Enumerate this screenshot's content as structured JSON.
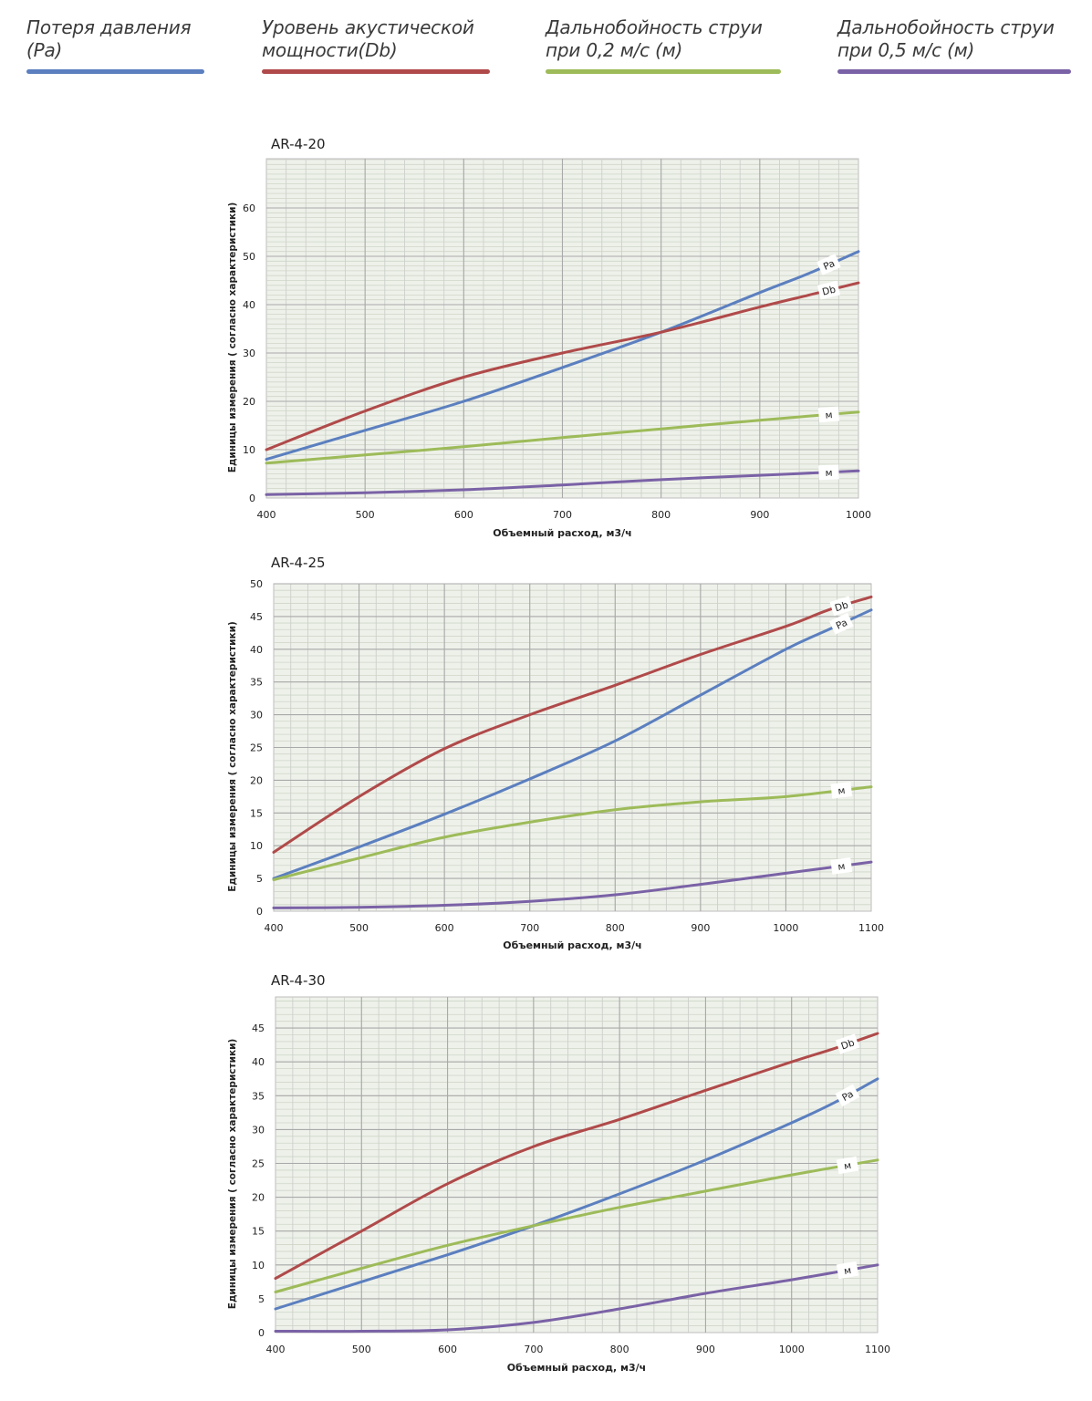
{
  "legend": [
    {
      "label": "Потеря давления\n(Pa)",
      "color": "#5b7fbf"
    },
    {
      "label": "Уровень акустической\nмощности(Db)",
      "color": "#b04a4a"
    },
    {
      "label": "Дальнобойность струи\nпри 0,2 м/с (м)",
      "color": "#9dbb59"
    },
    {
      "label": "Дальнобойность струи\nпри 0,5 м/с (м)",
      "color": "#7a62a6"
    }
  ],
  "chart_data": [
    {
      "type": "line",
      "title": "AR-4-20",
      "xlabel": "Объемный расход, м3/ч",
      "ylabel": "Единицы измерения ( согласно характеристики)",
      "xlim": [
        400,
        1000
      ],
      "ylim": [
        0,
        70
      ],
      "xticks": [
        400,
        500,
        600,
        700,
        800,
        900,
        1000
      ],
      "yticks": [
        0,
        10,
        20,
        30,
        40,
        50,
        60
      ],
      "grid": true,
      "series": [
        {
          "name": "Pa",
          "label": "Pa",
          "color": "#5b7fbf",
          "x": [
            400,
            500,
            600,
            700,
            800,
            900,
            950,
            1000
          ],
          "y": [
            8,
            14,
            20,
            27,
            34.3,
            42.5,
            46.5,
            51
          ]
        },
        {
          "name": "Db",
          "label": "Db",
          "color": "#b04a4a",
          "x": [
            400,
            500,
            600,
            700,
            800,
            900,
            950,
            1000
          ],
          "y": [
            10,
            18,
            25,
            30,
            34.3,
            39.5,
            42,
            44.5
          ]
        },
        {
          "name": "м (0,2 м/с)",
          "label": "м",
          "color": "#9dbb59",
          "x": [
            400,
            500,
            600,
            700,
            800,
            900,
            1000
          ],
          "y": [
            7.2,
            8.9,
            10.6,
            12.5,
            14.3,
            16.1,
            17.8
          ]
        },
        {
          "name": "м (0,5 м/с)",
          "label": "м",
          "color": "#7a62a6",
          "x": [
            400,
            500,
            600,
            700,
            800,
            900,
            1000
          ],
          "y": [
            0.7,
            1.1,
            1.7,
            2.7,
            3.8,
            4.7,
            5.6
          ]
        }
      ]
    },
    {
      "type": "line",
      "title": "AR-4-25",
      "xlabel": "Объемный расход, м3/ч",
      "ylabel": "Единицы измерения ( согласно характеристики)",
      "xlim": [
        400,
        1100
      ],
      "ylim": [
        0,
        50
      ],
      "xticks": [
        400,
        500,
        600,
        700,
        800,
        900,
        1000,
        1100
      ],
      "yticks": [
        0,
        5,
        10,
        15,
        20,
        25,
        30,
        35,
        40,
        45,
        50
      ],
      "grid": true,
      "series": [
        {
          "name": "Pa",
          "label": "Pa",
          "color": "#5b7fbf",
          "x": [
            400,
            500,
            600,
            700,
            800,
            900,
            1000,
            1050,
            1100
          ],
          "y": [
            5,
            9.8,
            14.8,
            20.2,
            26,
            33,
            40,
            43,
            46
          ]
        },
        {
          "name": "Db",
          "label": "Db",
          "color": "#b04a4a",
          "x": [
            400,
            500,
            600,
            700,
            800,
            900,
            1000,
            1050,
            1100
          ],
          "y": [
            9,
            17.5,
            24.8,
            30,
            34.5,
            39.2,
            43.5,
            46,
            48
          ]
        },
        {
          "name": "м (0,2 м/с)",
          "label": "м",
          "color": "#9dbb59",
          "x": [
            400,
            500,
            600,
            700,
            800,
            900,
            1000,
            1100
          ],
          "y": [
            4.8,
            8.1,
            11.3,
            13.6,
            15.5,
            16.7,
            17.5,
            19
          ]
        },
        {
          "name": "м (0,5 м/с)",
          "label": "м",
          "color": "#7a62a6",
          "x": [
            400,
            500,
            600,
            700,
            800,
            900,
            1000,
            1100
          ],
          "y": [
            0.5,
            0.6,
            0.9,
            1.5,
            2.5,
            4.1,
            5.8,
            7.5
          ]
        }
      ]
    },
    {
      "type": "line",
      "title": "AR-4-30",
      "xlabel": "Объемный расход, м3/ч",
      "ylabel": "Единицы измерения ( согласно характеристики)",
      "xlim": [
        400,
        1100
      ],
      "ylim": [
        0,
        50
      ],
      "xticks": [
        400,
        500,
        600,
        700,
        800,
        900,
        1000,
        1100
      ],
      "yticks": [
        0,
        5,
        10,
        15,
        20,
        25,
        30,
        35,
        40,
        45
      ],
      "grid": true,
      "series": [
        {
          "name": "Db",
          "label": "Db",
          "color": "#b04a4a",
          "x": [
            400,
            500,
            600,
            700,
            800,
            900,
            1000,
            1050,
            1100
          ],
          "y": [
            8,
            15,
            22,
            27.5,
            31.5,
            35.8,
            40,
            42,
            44.2
          ]
        },
        {
          "name": "Pa",
          "label": "Pa",
          "color": "#5b7fbf",
          "x": [
            400,
            500,
            600,
            700,
            800,
            900,
            1000,
            1050,
            1100
          ],
          "y": [
            3.5,
            7.5,
            11.5,
            15.8,
            20.5,
            25.5,
            31,
            34,
            37.5
          ]
        },
        {
          "name": "м (0,2 м/с)",
          "label": "м",
          "color": "#9dbb59",
          "x": [
            400,
            500,
            600,
            700,
            800,
            900,
            1000,
            1100
          ],
          "y": [
            6,
            9.5,
            12.9,
            15.8,
            18.5,
            20.9,
            23.3,
            25.5
          ]
        },
        {
          "name": "м (0,5 м/с)",
          "label": "м",
          "color": "#7a62a6",
          "x": [
            400,
            500,
            600,
            700,
            800,
            900,
            1000,
            1100
          ],
          "y": [
            0.2,
            0.2,
            0.4,
            1.5,
            3.5,
            5.8,
            7.8,
            10
          ]
        }
      ]
    }
  ]
}
